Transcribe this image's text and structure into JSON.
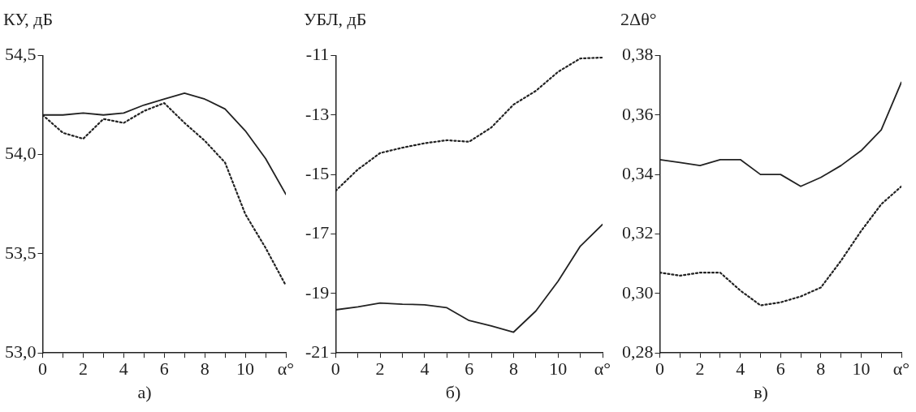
{
  "chart_data": [
    {
      "type": "line",
      "title": "а)",
      "ylabel": "КУ, дБ",
      "x": [
        0,
        1,
        2,
        3,
        4,
        5,
        6,
        7,
        8,
        9,
        10,
        11,
        12
      ],
      "series": [
        {
          "color": "#222222",
          "line_style": "solid",
          "values": [
            54.2,
            54.2,
            54.21,
            54.2,
            54.21,
            54.25,
            54.28,
            54.31,
            54.28,
            54.23,
            54.12,
            53.98,
            53.8
          ]
        },
        {
          "color": "#222222",
          "line_style": "dotted",
          "values": [
            54.2,
            54.11,
            54.08,
            54.18,
            54.16,
            54.22,
            54.26,
            54.16,
            54.07,
            53.96,
            53.7,
            53.53,
            53.34
          ]
        }
      ],
      "xlim": [
        0,
        12
      ],
      "xticks": [
        0,
        {
          "value": 1,
          "label": null
        },
        2,
        {
          "value": 3,
          "label": null
        },
        4,
        {
          "value": 5,
          "label": null
        },
        6,
        {
          "value": 7,
          "label": null
        },
        8,
        {
          "value": 9,
          "label": null
        },
        10,
        {
          "value": 11,
          "label": null
        },
        {
          "value": 12,
          "label": "α°"
        }
      ],
      "ylim": [
        53.0,
        54.5
      ],
      "yticks": [
        {
          "value": 53.0,
          "label": "53,0"
        },
        {
          "value": 53.5,
          "label": "53,5"
        },
        {
          "value": 54.0,
          "label": "54,0"
        },
        {
          "value": 54.5,
          "label": "54,5"
        }
      ],
      "grid": false,
      "legend": false,
      "marker": "none"
    },
    {
      "type": "line",
      "title": "б)",
      "ylabel": "УБЛ, дБ",
      "x": [
        0,
        1,
        2,
        3,
        4,
        5,
        6,
        7,
        8,
        9,
        10,
        11,
        12
      ],
      "series": [
        {
          "color": "#222222",
          "line_style": "dotted",
          "values": [
            -15.55,
            -14.83,
            -14.28,
            -14.1,
            -13.95,
            -13.85,
            -13.9,
            -13.42,
            -12.65,
            -12.19,
            -11.55,
            -11.1,
            -11.07
          ]
        },
        {
          "color": "#222222",
          "line_style": "solid",
          "values": [
            -19.55,
            -19.45,
            -19.32,
            -19.36,
            -19.38,
            -19.48,
            -19.91,
            -20.09,
            -20.3,
            -19.59,
            -18.59,
            -17.41,
            -16.68
          ]
        }
      ],
      "xlim": [
        0,
        12
      ],
      "xticks": [
        0,
        {
          "value": 1,
          "label": null
        },
        2,
        {
          "value": 3,
          "label": null
        },
        4,
        {
          "value": 5,
          "label": null
        },
        6,
        {
          "value": 7,
          "label": null
        },
        8,
        {
          "value": 9,
          "label": null
        },
        10,
        {
          "value": 11,
          "label": null
        },
        {
          "value": 12,
          "label": "α°"
        }
      ],
      "ylim": [
        -21,
        -11
      ],
      "yticks": [
        -21,
        -19,
        -17,
        -15,
        -13,
        -11
      ],
      "grid": false,
      "legend": false,
      "marker": "none"
    },
    {
      "type": "line",
      "title": "в)",
      "ylabel": "2Δθ°",
      "x": [
        0,
        1,
        2,
        3,
        4,
        5,
        6,
        7,
        8,
        9,
        10,
        11,
        12
      ],
      "series": [
        {
          "color": "#222222",
          "line_style": "solid",
          "values": [
            0.345,
            0.344,
            0.343,
            0.345,
            0.345,
            0.34,
            0.34,
            0.336,
            0.339,
            0.343,
            0.348,
            0.355,
            0.371
          ]
        },
        {
          "color": "#222222",
          "line_style": "dotted",
          "values": [
            0.307,
            0.306,
            0.307,
            0.307,
            0.301,
            0.296,
            0.297,
            0.299,
            0.302,
            0.311,
            0.321,
            0.33,
            0.336
          ]
        }
      ],
      "xlim": [
        0,
        12
      ],
      "xticks": [
        0,
        {
          "value": 1,
          "label": null
        },
        2,
        {
          "value": 3,
          "label": null
        },
        4,
        {
          "value": 5,
          "label": null
        },
        6,
        {
          "value": 7,
          "label": null
        },
        8,
        {
          "value": 9,
          "label": null
        },
        10,
        {
          "value": 11,
          "label": null
        },
        {
          "value": 12,
          "label": "α°"
        }
      ],
      "ylim": [
        0.28,
        0.38
      ],
      "yticks": [
        {
          "value": 0.28,
          "label": "0,28"
        },
        {
          "value": 0.3,
          "label": "0,30"
        },
        {
          "value": 0.32,
          "label": "0,32"
        },
        {
          "value": 0.34,
          "label": "0,34"
        },
        {
          "value": 0.36,
          "label": "0,36"
        },
        {
          "value": 0.38,
          "label": "0,38"
        }
      ],
      "grid": false,
      "legend": false,
      "marker": "none"
    }
  ]
}
